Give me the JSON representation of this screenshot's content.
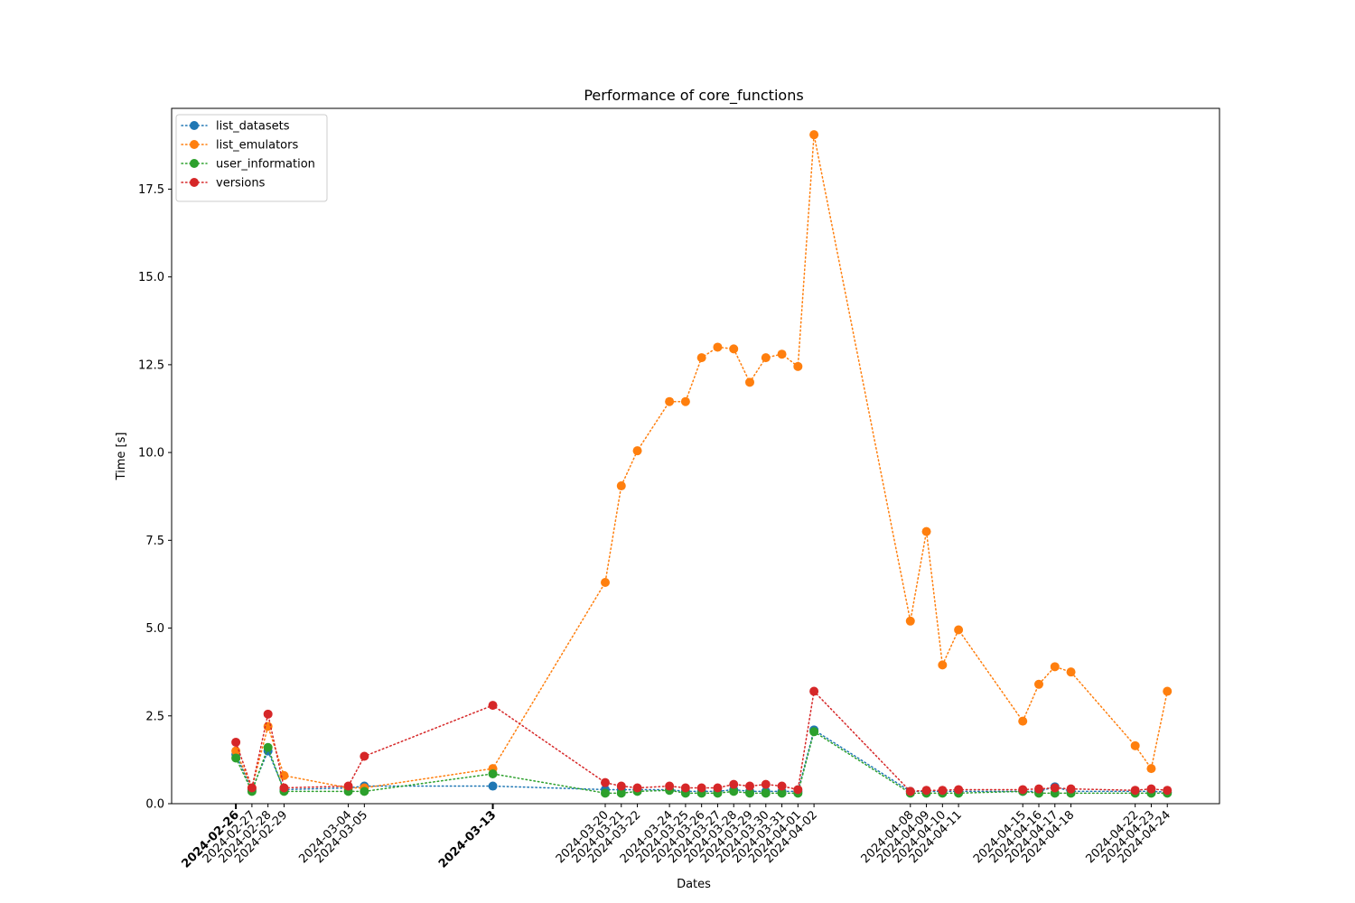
{
  "chart_data": {
    "type": "line",
    "title": "Performance of core_functions",
    "xlabel": "Dates",
    "ylabel": "Time [s]",
    "ylim": [
      0,
      19.8
    ],
    "y_ticks": [
      0.0,
      2.5,
      5.0,
      7.5,
      10.0,
      12.5,
      15.0,
      17.5
    ],
    "y_tick_labels": [
      "0.0",
      "2.5",
      "5.0",
      "7.5",
      "10.0",
      "12.5",
      "15.0",
      "17.5"
    ],
    "grid": false,
    "legend_position": "top-left",
    "line_style": "dotted",
    "x": [
      "2024-02-26",
      "2024-02-27",
      "2024-02-28",
      "2024-02-29",
      "2024-03-04",
      "2024-03-05",
      "2024-03-13",
      "2024-03-20",
      "2024-03-21",
      "2024-03-22",
      "2024-03-24",
      "2024-03-25",
      "2024-03-26",
      "2024-03-27",
      "2024-03-28",
      "2024-03-29",
      "2024-03-30",
      "2024-03-31",
      "2024-04-01",
      "2024-04-02",
      "2024-04-08",
      "2024-04-09",
      "2024-04-10",
      "2024-04-11",
      "2024-04-15",
      "2024-04-16",
      "2024-04-17",
      "2024-04-18",
      "2024-04-22",
      "2024-04-23",
      "2024-04-24"
    ],
    "x_tick_labels": [
      "2024-02-26",
      "2024-02-27",
      "2024-02-28",
      "2024-02-29",
      "2024-03-04",
      "2024-03-05",
      "2024-03-13",
      "2024-03-20",
      "2024-03-21",
      "2024-03-22",
      "2024-03-24",
      "2024-03-25",
      "2024-03-26",
      "2024-03-27",
      "2024-03-28",
      "2024-03-29",
      "2024-03-30",
      "2024-03-31",
      "2024-04-01",
      "2024-04-02",
      "2024-04-08",
      "2024-04-09",
      "2024-04-10",
      "2024-04-11",
      "2024-04-15",
      "2024-04-16",
      "2024-04-17",
      "2024-04-18",
      "2024-04-22",
      "2024-04-23",
      "2024-04-24"
    ],
    "bold_tick_labels": [
      "2024-02-26",
      "2024-03-13"
    ],
    "series": [
      {
        "name": "list_datasets",
        "color": "#1f77b4",
        "points": [
          [
            "2024-02-26",
            1.4
          ],
          [
            "2024-02-27",
            0.4
          ],
          [
            "2024-02-28",
            1.5
          ],
          [
            "2024-02-29",
            0.4
          ],
          [
            "2024-03-04",
            0.45
          ],
          [
            "2024-03-05",
            0.5
          ],
          [
            "2024-03-13",
            0.5
          ],
          [
            "2024-03-20",
            0.4
          ],
          [
            "2024-03-21",
            0.4
          ],
          [
            "2024-03-22",
            0.4
          ],
          [
            "2024-03-24",
            0.4
          ],
          [
            "2024-03-25",
            0.35
          ],
          [
            "2024-03-26",
            0.35
          ],
          [
            "2024-03-27",
            0.35
          ],
          [
            "2024-03-28",
            0.4
          ],
          [
            "2024-03-29",
            0.35
          ],
          [
            "2024-03-30",
            0.35
          ],
          [
            "2024-03-31",
            0.35
          ],
          [
            "2024-04-01",
            0.35
          ],
          [
            "2024-04-02",
            2.1
          ],
          [
            "2024-04-08",
            0.35
          ],
          [
            "2024-04-09",
            0.35
          ],
          [
            "2024-04-10",
            0.35
          ],
          [
            "2024-04-11",
            0.35
          ],
          [
            "2024-04-15",
            0.35
          ],
          [
            "2024-04-16",
            0.35
          ],
          [
            "2024-04-17",
            0.48
          ],
          [
            "2024-04-18",
            0.35
          ],
          [
            "2024-04-22",
            0.35
          ],
          [
            "2024-04-23",
            0.35
          ],
          [
            "2024-04-24",
            0.33
          ]
        ]
      },
      {
        "name": "list_emulators",
        "color": "#ff7f0e",
        "points": [
          [
            "2024-02-26",
            1.5
          ],
          [
            "2024-02-27",
            0.45
          ],
          [
            "2024-02-28",
            2.2
          ],
          [
            "2024-02-29",
            0.8
          ],
          [
            "2024-03-04",
            0.45
          ],
          [
            "2024-03-05",
            0.45
          ],
          [
            "2024-03-13",
            1.0
          ],
          [
            "2024-03-20",
            6.3
          ],
          [
            "2024-03-21",
            9.05
          ],
          [
            "2024-03-22",
            10.05
          ],
          [
            "2024-03-24",
            11.45
          ],
          [
            "2024-03-25",
            11.45
          ],
          [
            "2024-03-26",
            12.7
          ],
          [
            "2024-03-27",
            13.0
          ],
          [
            "2024-03-28",
            12.95
          ],
          [
            "2024-03-29",
            12.0
          ],
          [
            "2024-03-30",
            12.7
          ],
          [
            "2024-03-31",
            12.8
          ],
          [
            "2024-04-01",
            12.45
          ],
          [
            "2024-04-02",
            19.05
          ],
          [
            "2024-04-08",
            5.2
          ],
          [
            "2024-04-09",
            7.75
          ],
          [
            "2024-04-10",
            3.95
          ],
          [
            "2024-04-11",
            4.95
          ],
          [
            "2024-04-15",
            2.35
          ],
          [
            "2024-04-16",
            3.4
          ],
          [
            "2024-04-17",
            3.9
          ],
          [
            "2024-04-18",
            3.75
          ],
          [
            "2024-04-22",
            1.65
          ],
          [
            "2024-04-23",
            1.0
          ],
          [
            "2024-04-24",
            3.2
          ]
        ]
      },
      {
        "name": "user_information",
        "color": "#2ca02c",
        "points": [
          [
            "2024-02-26",
            1.3
          ],
          [
            "2024-02-27",
            0.35
          ],
          [
            "2024-02-28",
            1.6
          ],
          [
            "2024-02-29",
            0.35
          ],
          [
            "2024-03-04",
            0.35
          ],
          [
            "2024-03-05",
            0.35
          ],
          [
            "2024-03-13",
            0.85
          ],
          [
            "2024-03-20",
            0.3
          ],
          [
            "2024-03-21",
            0.3
          ],
          [
            "2024-03-22",
            0.35
          ],
          [
            "2024-03-24",
            0.38
          ],
          [
            "2024-03-25",
            0.3
          ],
          [
            "2024-03-26",
            0.3
          ],
          [
            "2024-03-27",
            0.3
          ],
          [
            "2024-03-28",
            0.35
          ],
          [
            "2024-03-29",
            0.3
          ],
          [
            "2024-03-30",
            0.3
          ],
          [
            "2024-03-31",
            0.3
          ],
          [
            "2024-04-01",
            0.3
          ],
          [
            "2024-04-02",
            2.05
          ],
          [
            "2024-04-08",
            0.3
          ],
          [
            "2024-04-09",
            0.3
          ],
          [
            "2024-04-10",
            0.3
          ],
          [
            "2024-04-11",
            0.3
          ],
          [
            "2024-04-15",
            0.35
          ],
          [
            "2024-04-16",
            0.3
          ],
          [
            "2024-04-17",
            0.3
          ],
          [
            "2024-04-18",
            0.3
          ],
          [
            "2024-04-22",
            0.3
          ],
          [
            "2024-04-23",
            0.3
          ],
          [
            "2024-04-24",
            0.3
          ]
        ]
      },
      {
        "name": "versions",
        "color": "#d62728",
        "points": [
          [
            "2024-02-26",
            1.75
          ],
          [
            "2024-02-27",
            0.45
          ],
          [
            "2024-02-28",
            2.55
          ],
          [
            "2024-02-29",
            0.45
          ],
          [
            "2024-03-04",
            0.5
          ],
          [
            "2024-03-05",
            1.35
          ],
          [
            "2024-03-13",
            2.8
          ],
          [
            "2024-03-20",
            0.6
          ],
          [
            "2024-03-21",
            0.5
          ],
          [
            "2024-03-22",
            0.45
          ],
          [
            "2024-03-24",
            0.5
          ],
          [
            "2024-03-25",
            0.45
          ],
          [
            "2024-03-26",
            0.45
          ],
          [
            "2024-03-27",
            0.45
          ],
          [
            "2024-03-28",
            0.55
          ],
          [
            "2024-03-29",
            0.5
          ],
          [
            "2024-03-30",
            0.55
          ],
          [
            "2024-03-31",
            0.5
          ],
          [
            "2024-04-01",
            0.4
          ],
          [
            "2024-04-02",
            3.2
          ],
          [
            "2024-04-08",
            0.35
          ],
          [
            "2024-04-09",
            0.38
          ],
          [
            "2024-04-10",
            0.38
          ],
          [
            "2024-04-11",
            0.4
          ],
          [
            "2024-04-15",
            0.4
          ],
          [
            "2024-04-16",
            0.42
          ],
          [
            "2024-04-17",
            0.45
          ],
          [
            "2024-04-18",
            0.42
          ],
          [
            "2024-04-22",
            0.38
          ],
          [
            "2024-04-23",
            0.42
          ],
          [
            "2024-04-24",
            0.38
          ]
        ]
      }
    ]
  }
}
